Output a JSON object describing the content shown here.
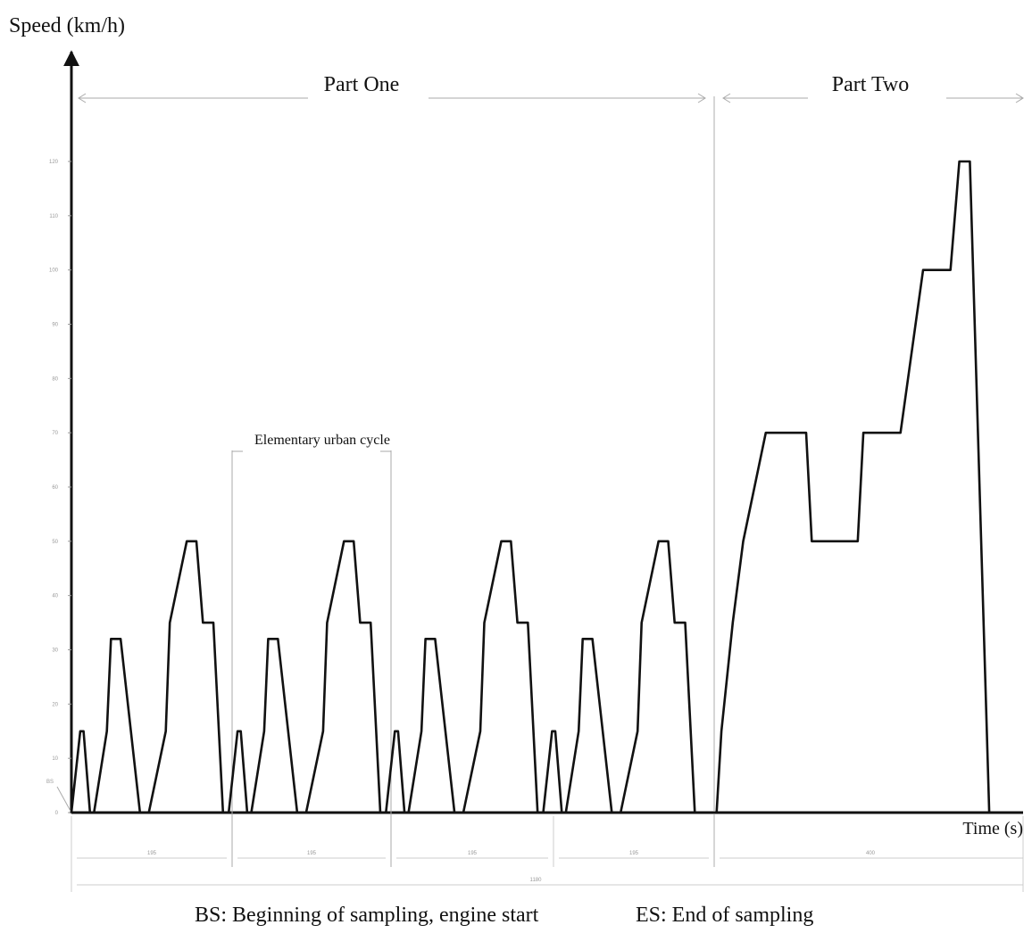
{
  "chart_data": {
    "type": "line",
    "title": "",
    "ylabel": "Speed (km/h)",
    "xlabel": "Time (s)",
    "ylim": [
      0,
      120
    ],
    "xlim": [
      0,
      1180
    ],
    "grid": false,
    "legend": "none",
    "y_ticks": [
      {
        "v": 0,
        "label": "0"
      },
      {
        "v": 10,
        "label": "10"
      },
      {
        "v": 20,
        "label": "20"
      },
      {
        "v": 30,
        "label": "30"
      },
      {
        "v": 40,
        "label": "40"
      },
      {
        "v": 50,
        "label": "50"
      },
      {
        "v": 60,
        "label": "60"
      },
      {
        "v": 70,
        "label": "70"
      },
      {
        "v": 80,
        "label": "80"
      },
      {
        "v": 90,
        "label": "90"
      },
      {
        "v": 100,
        "label": "100"
      },
      {
        "v": 110,
        "label": "110"
      },
      {
        "v": 120,
        "label": "120"
      }
    ],
    "series": [
      {
        "x": [
          0,
          11,
          15,
          23,
          28,
          44,
          49,
          61,
          85,
          96,
          117,
          122,
          143,
          155,
          163,
          176,
          188,
          195,
          206,
          210,
          218,
          223,
          239,
          244,
          256,
          280,
          291,
          312,
          317,
          338,
          350,
          358,
          371,
          383,
          390,
          401,
          405,
          413,
          418,
          434,
          439,
          451,
          475,
          486,
          507,
          512,
          533,
          545,
          553,
          566,
          578,
          585,
          596,
          600,
          608,
          613,
          629,
          634,
          646,
          670,
          681,
          702,
          707,
          728,
          740,
          748,
          761,
          773,
          780,
          800,
          806,
          820,
          833,
          861,
          911,
          918,
          975,
          982,
          1028,
          1056,
          1090,
          1101,
          1114,
          1138,
          1180
        ],
        "y": [
          0,
          15,
          15,
          0,
          0,
          15,
          32,
          32,
          0,
          0,
          15,
          35,
          50,
          50,
          35,
          35,
          0,
          0,
          15,
          15,
          0,
          0,
          15,
          32,
          32,
          0,
          0,
          15,
          35,
          50,
          50,
          35,
          35,
          0,
          0,
          15,
          15,
          0,
          0,
          15,
          32,
          32,
          0,
          0,
          15,
          35,
          50,
          50,
          35,
          35,
          0,
          0,
          15,
          15,
          0,
          0,
          15,
          32,
          32,
          0,
          0,
          15,
          35,
          50,
          50,
          35,
          35,
          0,
          0,
          0,
          15,
          35,
          50,
          70,
          70,
          50,
          50,
          70,
          70,
          100,
          100,
          120,
          120,
          0,
          0
        ]
      }
    ],
    "annotations": {
      "part_one": "Part One",
      "part_two": "Part Two",
      "elementary_cycle": "Elementary urban cycle",
      "bs": "BS",
      "dim_cycle": [
        "195",
        "195",
        "195",
        "195"
      ],
      "dim_part_two": "400",
      "dim_total": "1180"
    },
    "caption_bs": "BS: Beginning of sampling, engine start",
    "caption_es": "ES: End of sampling"
  }
}
